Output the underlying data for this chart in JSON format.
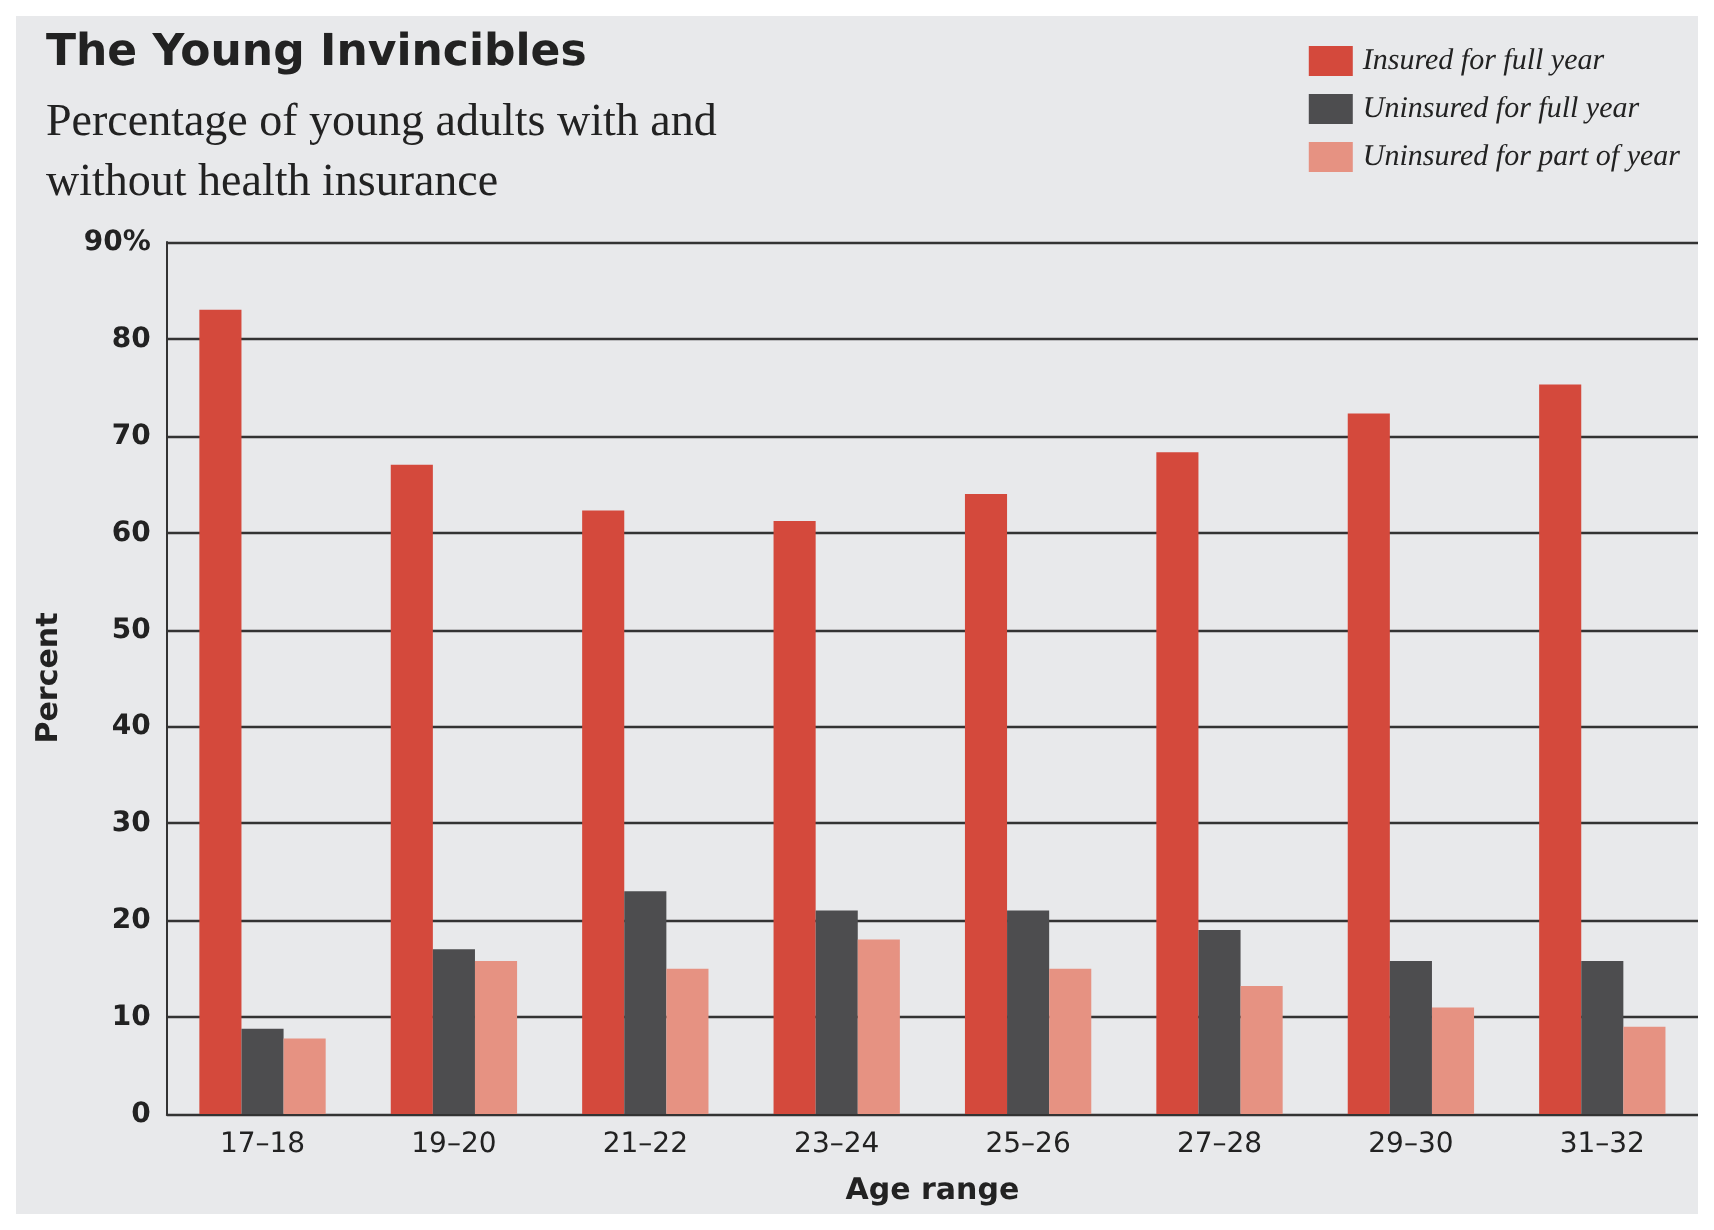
{
  "chart_data": {
    "type": "bar",
    "title": "The Young Invincibles",
    "subtitle": "Percentage of young adults with and\nwithout health insurance",
    "xlabel": "Age range",
    "ylabel": "Percent",
    "categories": [
      "17–18",
      "19–20",
      "21–22",
      "23–24",
      "25–26",
      "27–28",
      "29–30",
      "31–32"
    ],
    "series": [
      {
        "name": "Insured for full year",
        "color": "#d4493c",
        "values": [
          83,
          67,
          62.3,
          61.2,
          64,
          68.3,
          72.3,
          75.3
        ]
      },
      {
        "name": "Uninsured for full year",
        "color": "#4d4d4f",
        "values": [
          8.8,
          17,
          23,
          21,
          21,
          19,
          15.8,
          15.8
        ]
      },
      {
        "name": "Uninsured for part of year",
        "color": "#e69282",
        "values": [
          7.8,
          15.8,
          15,
          18,
          15,
          13.2,
          11,
          9
        ]
      }
    ],
    "ylim": [
      0,
      90
    ],
    "yticks": [
      0,
      10,
      20,
      30,
      40,
      50,
      60,
      70,
      80,
      {
        "value": 90,
        "label": "90%"
      }
    ],
    "grid": "y",
    "legend": "top right"
  }
}
